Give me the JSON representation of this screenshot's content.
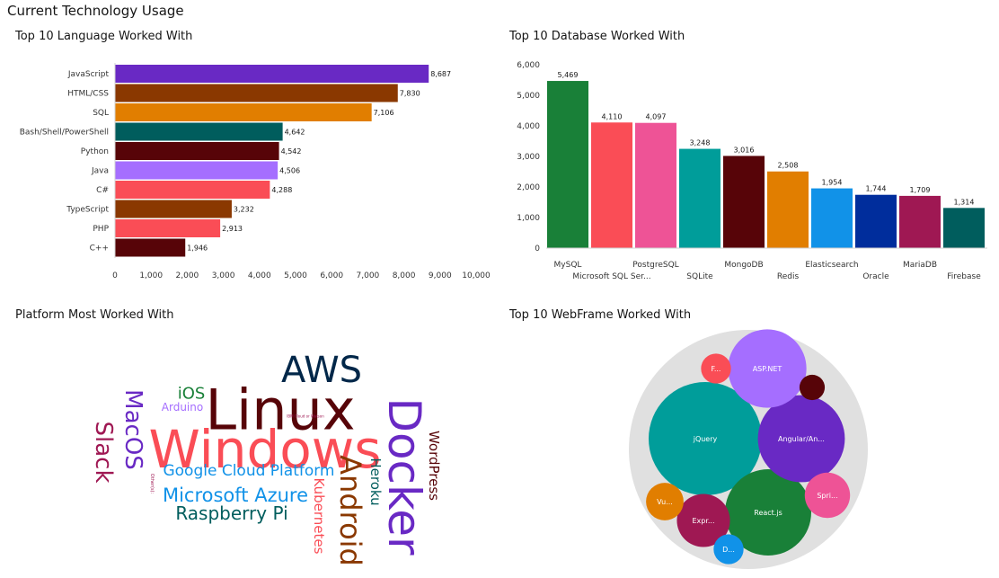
{
  "dashboard": {
    "title": "Current Technology Usage"
  },
  "chart_data": [
    {
      "id": "languages",
      "type": "bar",
      "orientation": "horizontal",
      "title": "Top 10 Language Worked With",
      "categories": [
        "JavaScript",
        "HTML/CSS",
        "SQL",
        "Bash/Shell/PowerShell",
        "Python",
        "Java",
        "C#",
        "TypeScript",
        "PHP",
        "C++"
      ],
      "values": [
        8687,
        7830,
        7106,
        4642,
        4542,
        4506,
        4288,
        3232,
        2913,
        1946
      ],
      "value_labels": [
        "8,687",
        "7,830",
        "7,106",
        "4,642",
        "4,542",
        "4,506",
        "4,288",
        "3,232",
        "2,913",
        "1,946"
      ],
      "colors": [
        "#6929c4",
        "#8a3800",
        "#e17e00",
        "#005d5d",
        "#570408",
        "#a56eff",
        "#fa4d56",
        "#8a3800",
        "#fa4d56",
        "#570408"
      ],
      "xlim": [
        0,
        10000
      ],
      "x_ticks": [
        0,
        1000,
        2000,
        3000,
        4000,
        5000,
        6000,
        7000,
        8000,
        9000,
        10000
      ],
      "x_tick_labels": [
        "0",
        "1,000",
        "2,000",
        "3,000",
        "4,000",
        "5,000",
        "6,000",
        "7,000",
        "8,000",
        "9,000",
        "10,000"
      ],
      "grid": false,
      "legend": "none"
    },
    {
      "id": "databases",
      "type": "bar",
      "orientation": "vertical",
      "title": "Top 10 Database Worked With",
      "categories": [
        "MySQL",
        "Microsoft SQL Ser...",
        "PostgreSQL",
        "SQLite",
        "MongoDB",
        "Redis",
        "Elasticsearch",
        "Oracle",
        "MariaDB",
        "Firebase"
      ],
      "values": [
        5469,
        4110,
        4097,
        3248,
        3016,
        2508,
        1954,
        1744,
        1709,
        1314
      ],
      "value_labels": [
        "5,469",
        "4,110",
        "4,097",
        "3,248",
        "3,016",
        "2,508",
        "1,954",
        "1,744",
        "1,709",
        "1,314"
      ],
      "colors": [
        "#198038",
        "#fa4d56",
        "#ee5396",
        "#009d9a",
        "#570408",
        "#e17e00",
        "#1192e8",
        "#002d9c",
        "#9f1853",
        "#005d5d"
      ],
      "ylim": [
        0,
        6000
      ],
      "y_ticks": [
        0,
        1000,
        2000,
        3000,
        4000,
        5000,
        6000
      ],
      "y_tick_labels": [
        "0",
        "1,000",
        "2,000",
        "3,000",
        "4,000",
        "5,000",
        "6,000"
      ],
      "grid": false,
      "legend": "none"
    },
    {
      "id": "platforms",
      "type": "wordcloud",
      "title": "Platform Most Worked With",
      "words": [
        {
          "text": "Windows",
          "weight": 100,
          "color": "#fa4d56"
        },
        {
          "text": "Linux",
          "weight": 92,
          "color": "#570408"
        },
        {
          "text": "Docker",
          "weight": 72,
          "color": "#6929c4"
        },
        {
          "text": "AWS",
          "weight": 60,
          "color": "#012749"
        },
        {
          "text": "Android",
          "weight": 50,
          "color": "#8a3800"
        },
        {
          "text": "MacOS",
          "weight": 42,
          "color": "#6929c4"
        },
        {
          "text": "Slack",
          "weight": 38,
          "color": "#9f1853"
        },
        {
          "text": "Microsoft Azure",
          "weight": 32,
          "color": "#1192e8"
        },
        {
          "text": "Google Cloud Platform",
          "weight": 28,
          "color": "#1192e8"
        },
        {
          "text": "Raspberry Pi",
          "weight": 30,
          "color": "#005d5d"
        },
        {
          "text": "Kubernetes",
          "weight": 24,
          "color": "#fa4d56"
        },
        {
          "text": "Heroku",
          "weight": 24,
          "color": "#005d5d"
        },
        {
          "text": "WordPress",
          "weight": 24,
          "color": "#570408"
        },
        {
          "text": "iOS",
          "weight": 26,
          "color": "#198038"
        },
        {
          "text": "Arduino",
          "weight": 16,
          "color": "#a56eff"
        },
        {
          "text": "IBM Cloud or Watson",
          "weight": 4,
          "color": "#9f1853"
        },
        {
          "text": "Other(s):",
          "weight": 4,
          "color": "#9f1853"
        }
      ]
    },
    {
      "id": "webframes",
      "type": "bubble",
      "title": "Top 10 WebFrame Worked With",
      "items": [
        {
          "label": "jQuery",
          "value": 100,
          "color": "#009d9a"
        },
        {
          "label": "React.js",
          "value": 58,
          "color": "#198038"
        },
        {
          "label": "Angular/An...",
          "value": 59,
          "color": "#6929c4"
        },
        {
          "label": "ASP.NET",
          "value": 48,
          "color": "#a56eff"
        },
        {
          "label": "Expr...",
          "value": 22,
          "color": "#9f1853"
        },
        {
          "label": "Spri...",
          "value": 16,
          "color": "#ee5396"
        },
        {
          "label": "Vu...",
          "value": 11,
          "color": "#e17e00"
        },
        {
          "label": "F...",
          "value": 7,
          "color": "#fa4d56"
        },
        {
          "label": "D...",
          "value": 7,
          "color": "#1192e8"
        },
        {
          "label": "",
          "value": 5,
          "color": "#570408"
        }
      ],
      "container_color": "#e0e0e0"
    }
  ]
}
